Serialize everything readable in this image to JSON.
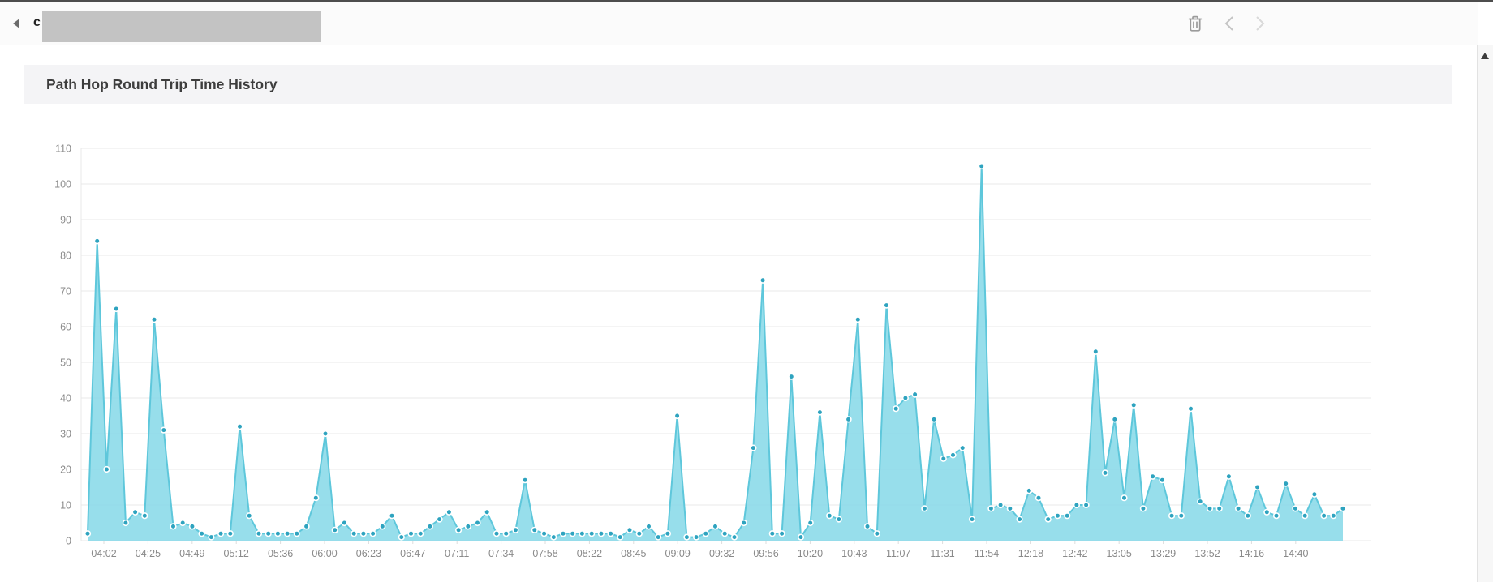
{
  "toolbar": {
    "document_title": "c"
  },
  "panel": {
    "title": "Path Hop Round Trip Time History"
  },
  "chart_data": {
    "type": "area",
    "title": "Path Hop Round Trip Time History",
    "xlabel": "",
    "ylabel": "",
    "ylim": [
      0,
      110
    ],
    "y_ticks": [
      0,
      10,
      20,
      30,
      40,
      50,
      60,
      70,
      80,
      90,
      100,
      110
    ],
    "x_tick_labels": [
      "04:02",
      "04:25",
      "04:49",
      "05:12",
      "05:36",
      "06:00",
      "06:23",
      "06:47",
      "07:11",
      "07:34",
      "07:58",
      "08:22",
      "08:45",
      "09:09",
      "09:32",
      "09:56",
      "10:20",
      "10:43",
      "11:07",
      "11:31",
      "11:54",
      "12:18",
      "12:42",
      "13:05",
      "13:29",
      "13:52",
      "14:16",
      "14:40"
    ],
    "grid": true,
    "legend_position": "none",
    "values": [
      2,
      84,
      20,
      65,
      5,
      8,
      7,
      62,
      31,
      4,
      5,
      4,
      2,
      1,
      2,
      2,
      32,
      7,
      2,
      2,
      2,
      2,
      2,
      4,
      12,
      30,
      3,
      5,
      2,
      2,
      2,
      4,
      7,
      1,
      2,
      2,
      4,
      6,
      8,
      3,
      4,
      5,
      8,
      2,
      2,
      3,
      17,
      3,
      2,
      1,
      2,
      2,
      2,
      2,
      2,
      2,
      1,
      3,
      2,
      4,
      1,
      2,
      35,
      1,
      1,
      2,
      4,
      2,
      1,
      5,
      26,
      73,
      2,
      2,
      46,
      1,
      5,
      36,
      7,
      6,
      34,
      62,
      4,
      2,
      66,
      37,
      40,
      41,
      9,
      34,
      23,
      24,
      26,
      6,
      105,
      9,
      10,
      9,
      6,
      14,
      12,
      6,
      7,
      7,
      10,
      10,
      53,
      19,
      34,
      12,
      38,
      9,
      18,
      17,
      7,
      7,
      37,
      11,
      9,
      9,
      18,
      9,
      7,
      15,
      8,
      7,
      16,
      9,
      7,
      13,
      7,
      7,
      9
    ],
    "colors": {
      "area_fill": "#85d8e7",
      "line": "#5ec7db",
      "marker": "#2ea3bf",
      "marker_ring": "#ffffff",
      "grid_line": "#e9e9e9",
      "tick_text": "#8a8a8a"
    }
  }
}
